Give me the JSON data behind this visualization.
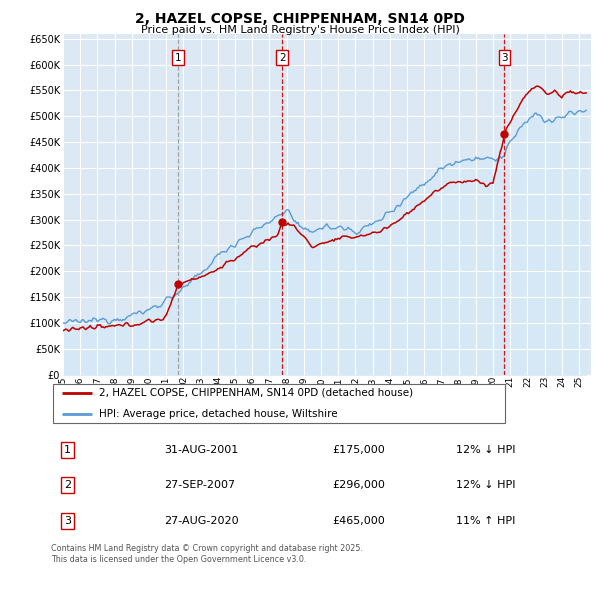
{
  "title": "2, HAZEL COPSE, CHIPPENHAM, SN14 0PD",
  "subtitle": "Price paid vs. HM Land Registry's House Price Index (HPI)",
  "sale_dates": [
    2001.67,
    2007.75,
    2020.67
  ],
  "sale_prices": [
    175000,
    296000,
    465000
  ],
  "sale_labels": [
    "1",
    "2",
    "3"
  ],
  "sale_line_colors": [
    "#999999",
    "#cc0000",
    "#cc0000"
  ],
  "legend_property": "2, HAZEL COPSE, CHIPPENHAM, SN14 0PD (detached house)",
  "legend_hpi": "HPI: Average price, detached house, Wiltshire",
  "table": [
    {
      "num": "1",
      "date": "31-AUG-2001",
      "price": "£175,000",
      "hpi": "12% ↓ HPI"
    },
    {
      "num": "2",
      "date": "27-SEP-2007",
      "price": "£296,000",
      "hpi": "12% ↓ HPI"
    },
    {
      "num": "3",
      "date": "27-AUG-2020",
      "price": "£465,000",
      "hpi": "11% ↑ HPI"
    }
  ],
  "footnote1": "Contains HM Land Registry data © Crown copyright and database right 2025.",
  "footnote2": "This data is licensed under the Open Government Licence v3.0.",
  "ylim": [
    0,
    660000
  ],
  "yticks": [
    0,
    50000,
    100000,
    150000,
    200000,
    250000,
    300000,
    350000,
    400000,
    450000,
    500000,
    550000,
    600000,
    650000
  ],
  "ytick_labels": [
    "£0",
    "£50K",
    "£100K",
    "£150K",
    "£200K",
    "£250K",
    "£300K",
    "£350K",
    "£400K",
    "£450K",
    "£500K",
    "£550K",
    "£600K",
    "£650K"
  ],
  "hpi_color": "#5b9bd5",
  "hpi_fill_color": "#d6e8f7",
  "property_color": "#c00000",
  "plot_bg": "#dce9f5",
  "grid_color": "#ffffff",
  "annotation_box_color": "#cc0000",
  "hpi_anchors_x": [
    1995.0,
    1996.0,
    1997.0,
    1998.0,
    1999.0,
    2000.0,
    2001.0,
    2002.0,
    2003.0,
    2004.0,
    2005.0,
    2006.0,
    2007.0,
    2008.0,
    2009.0,
    2010.0,
    2011.0,
    2012.0,
    2013.0,
    2014.0,
    2015.0,
    2016.0,
    2017.0,
    2018.0,
    2019.0,
    2020.0,
    2020.5,
    2021.0,
    2021.5,
    2022.0,
    2022.5,
    2023.0,
    2023.5,
    2024.0,
    2024.5,
    2025.4
  ],
  "hpi_anchors_y": [
    100000,
    102000,
    105000,
    108000,
    115000,
    125000,
    145000,
    165000,
    195000,
    230000,
    255000,
    275000,
    295000,
    320000,
    275000,
    285000,
    285000,
    278000,
    290000,
    315000,
    345000,
    370000,
    400000,
    415000,
    420000,
    415000,
    420000,
    450000,
    470000,
    490000,
    510000,
    490000,
    490000,
    500000,
    505000,
    510000
  ],
  "prop_anchors_x": [
    1995.0,
    1996.5,
    1998.0,
    1999.5,
    2001.0,
    2001.67,
    2002.5,
    2003.5,
    2004.5,
    2005.5,
    2006.5,
    2007.5,
    2007.75,
    2008.5,
    2009.5,
    2010.5,
    2011.5,
    2012.5,
    2013.5,
    2014.5,
    2015.5,
    2016.5,
    2017.5,
    2018.0,
    2019.0,
    2019.5,
    2020.0,
    2020.67,
    2021.0,
    2021.5,
    2022.0,
    2022.5,
    2022.8,
    2023.2,
    2023.6,
    2024.0,
    2024.3,
    2024.6,
    2025.4
  ],
  "prop_anchors_y": [
    88000,
    90000,
    93000,
    100000,
    110000,
    175000,
    185000,
    195000,
    215000,
    235000,
    255000,
    270000,
    296000,
    285000,
    248000,
    258000,
    265000,
    270000,
    278000,
    298000,
    325000,
    350000,
    370000,
    375000,
    375000,
    368000,
    370000,
    465000,
    490000,
    520000,
    545000,
    560000,
    555000,
    540000,
    550000,
    535000,
    550000,
    545000,
    545000
  ]
}
